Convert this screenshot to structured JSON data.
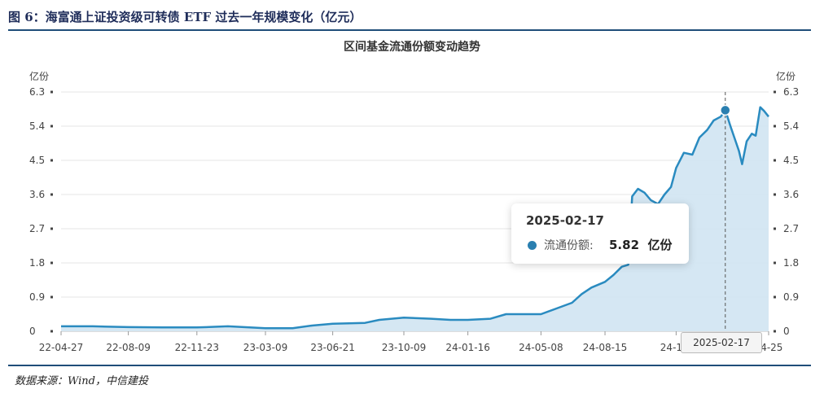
{
  "figure": {
    "title": "图 6：海富通上证投资级可转债 ETF 过去一年规模变化（亿元）",
    "source": "数据来源：Wind，中信建投"
  },
  "tooltip": {
    "date": "2025-02-17",
    "series_label": "流通份额:",
    "value": "5.82",
    "unit": "亿份"
  },
  "crosshair_label": "2025-02-17",
  "colors": {
    "line": "#2a8bc0",
    "area": "#d3e6f2",
    "accent": "#2a7fb0",
    "title": "#1f2d5a"
  },
  "chart_data": {
    "type": "area",
    "title": "区间基金流通份额变动趋势",
    "ylabel_left": "亿份",
    "ylabel_right": "亿份",
    "ylim": [
      0,
      6.3
    ],
    "yticks": [
      0,
      0.9,
      1.8,
      2.7,
      3.6,
      4.5,
      5.4,
      6.3
    ],
    "ytick_labels": [
      "0",
      "0.9",
      "1.8",
      "2.7",
      "3.6",
      "4.5",
      "5.4",
      "6.3"
    ],
    "xlim": [
      "2022-04-27",
      "2025-04-25"
    ],
    "xtick_labels": [
      "22-04-27",
      "22-08-09",
      "22-11-23",
      "23-03-09",
      "23-06-21",
      "23-10-09",
      "24-01-16",
      "24-05-08",
      "24-08-15",
      "24-12-",
      "04-25"
    ],
    "xtick_dates": [
      "2022-04-27",
      "2022-08-09",
      "2022-11-23",
      "2023-03-09",
      "2023-06-21",
      "2023-10-09",
      "2024-01-16",
      "2024-05-08",
      "2024-08-15",
      "2024-12-03",
      "2025-04-25"
    ],
    "grid": true,
    "series": [
      {
        "name": "流通份额",
        "points": [
          [
            "2022-04-27",
            0.13
          ],
          [
            "2022-06-15",
            0.13
          ],
          [
            "2022-08-09",
            0.11
          ],
          [
            "2022-10-01",
            0.1
          ],
          [
            "2022-11-23",
            0.1
          ],
          [
            "2023-01-10",
            0.13
          ],
          [
            "2023-03-09",
            0.08
          ],
          [
            "2023-04-20",
            0.08
          ],
          [
            "2023-05-20",
            0.15
          ],
          [
            "2023-06-21",
            0.2
          ],
          [
            "2023-08-10",
            0.22
          ],
          [
            "2023-09-01",
            0.3
          ],
          [
            "2023-10-09",
            0.36
          ],
          [
            "2023-11-20",
            0.33
          ],
          [
            "2023-12-20",
            0.3
          ],
          [
            "2024-01-16",
            0.3
          ],
          [
            "2024-02-20",
            0.33
          ],
          [
            "2024-03-15",
            0.45
          ],
          [
            "2024-05-08",
            0.45
          ],
          [
            "2024-06-01",
            0.6
          ],
          [
            "2024-06-25",
            0.75
          ],
          [
            "2024-07-10",
            0.98
          ],
          [
            "2024-07-25",
            1.15
          ],
          [
            "2024-08-15",
            1.3
          ],
          [
            "2024-08-28",
            1.48
          ],
          [
            "2024-09-10",
            1.7
          ],
          [
            "2024-09-20",
            1.75
          ],
          [
            "2024-09-26",
            3.55
          ],
          [
            "2024-10-05",
            3.75
          ],
          [
            "2024-10-15",
            3.65
          ],
          [
            "2024-10-25",
            3.45
          ],
          [
            "2024-11-05",
            3.35
          ],
          [
            "2024-11-15",
            3.6
          ],
          [
            "2024-11-25",
            3.8
          ],
          [
            "2024-12-03",
            4.3
          ],
          [
            "2024-12-15",
            4.7
          ],
          [
            "2024-12-28",
            4.65
          ],
          [
            "2025-01-08",
            5.1
          ],
          [
            "2025-01-20",
            5.3
          ],
          [
            "2025-01-30",
            5.55
          ],
          [
            "2025-02-10",
            5.65
          ],
          [
            "2025-02-17",
            5.82
          ],
          [
            "2025-02-25",
            5.4
          ],
          [
            "2025-03-03",
            5.1
          ],
          [
            "2025-03-10",
            4.75
          ],
          [
            "2025-03-15",
            4.4
          ],
          [
            "2025-03-22",
            5.0
          ],
          [
            "2025-03-30",
            5.2
          ],
          [
            "2025-04-05",
            5.15
          ],
          [
            "2025-04-12",
            5.9
          ],
          [
            "2025-04-18",
            5.8
          ],
          [
            "2025-04-25",
            5.65
          ]
        ]
      }
    ]
  }
}
